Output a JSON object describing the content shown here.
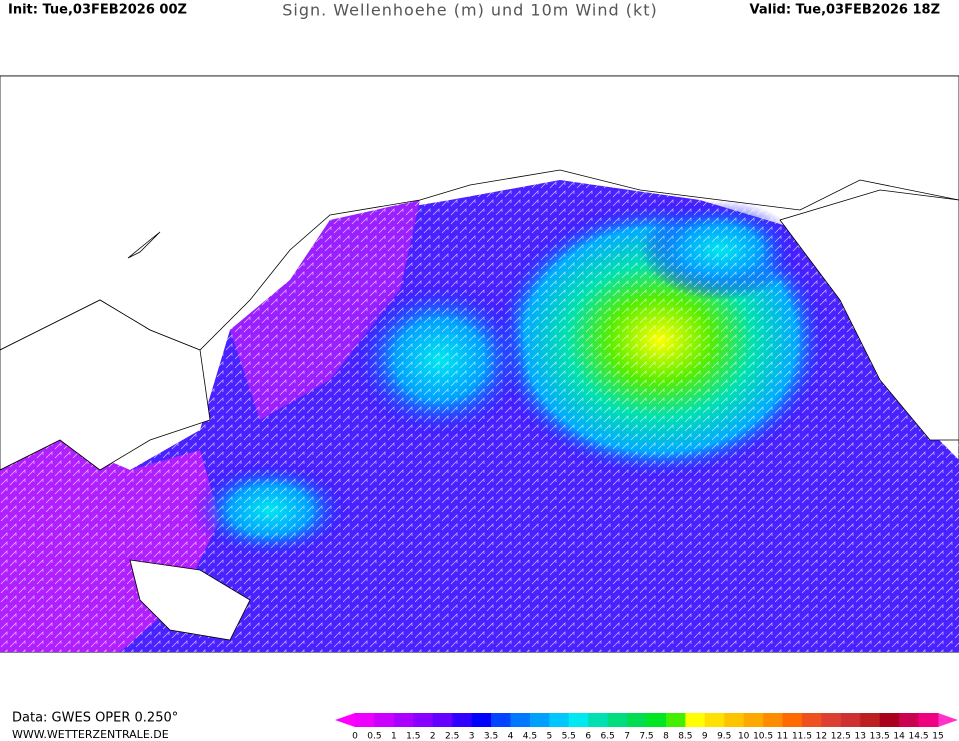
{
  "header": {
    "init": "Init: Tue,03FEB2026 00Z",
    "title": "Sign. Wellenhoehe (m) und 10m Wind (kt)",
    "valid": "Valid: Tue,03FEB2026 18Z"
  },
  "footer": {
    "data_source": "Data: GWES OPER 0.250°",
    "website": "WWW.WETTERZENTRALE.DE"
  },
  "legend": {
    "labels": [
      0,
      0.5,
      1,
      1.5,
      2,
      2.5,
      3,
      3.5,
      4,
      4.5,
      5,
      5.5,
      6,
      6.5,
      7,
      7.5,
      8,
      8.5,
      9,
      9.5,
      10,
      10.5,
      11,
      11.5,
      12,
      12.5,
      13,
      13.5,
      14,
      14.5,
      15
    ],
    "below_color": "#ff00ff",
    "above_color": "#ff33cc",
    "colors": [
      "#ee00ff",
      "#cc00ff",
      "#aa00ff",
      "#8800ff",
      "#6600ff",
      "#3300ff",
      "#0000ff",
      "#0044ff",
      "#0077ff",
      "#00a0ff",
      "#00c8ff",
      "#00e8f0",
      "#00e0b0",
      "#00dd80",
      "#00dd50",
      "#00e620",
      "#44ee00",
      "#ffff00",
      "#ffe000",
      "#ffc400",
      "#ffa800",
      "#ff8c00",
      "#ff6a00",
      "#ee5020",
      "#dd4030",
      "#cc3030",
      "#bb2020",
      "#aa0020",
      "#cc0050",
      "#ee0080"
    ]
  }
}
